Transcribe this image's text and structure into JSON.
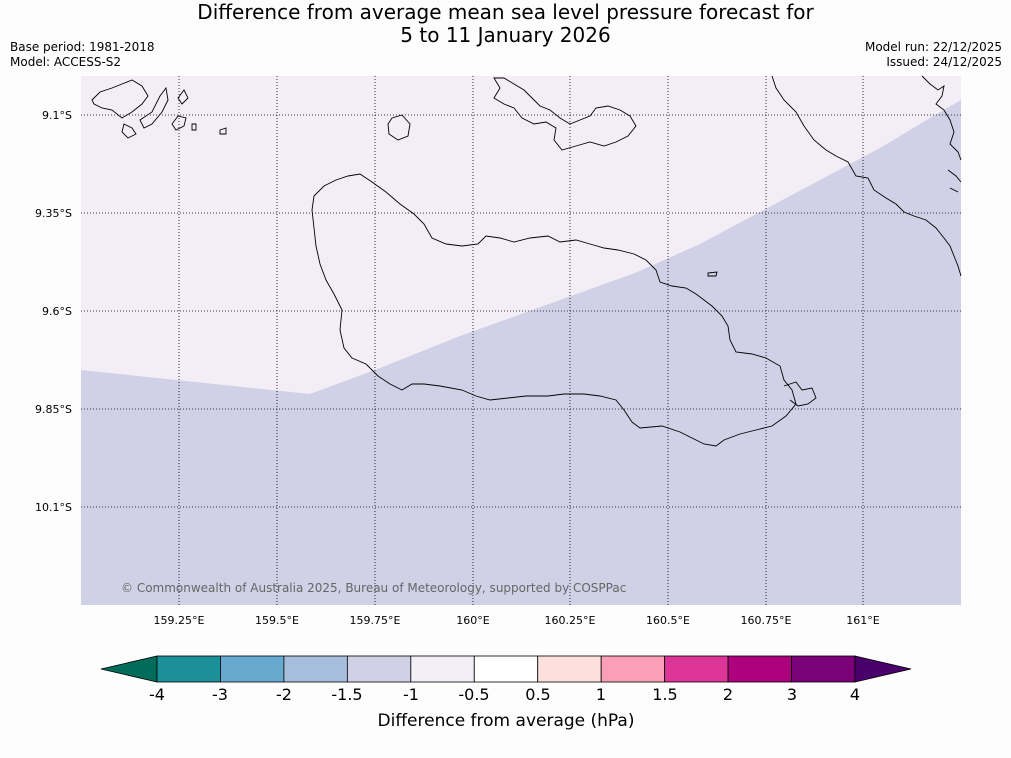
{
  "header": {
    "title_line1": "Difference from average mean sea level pressure forecast for",
    "title_line2": "5 to 11 January 2026",
    "base_period": "Base period: 1981-2018",
    "model": "Model: ACCESS-S2",
    "model_run": "Model run: 22/12/2025",
    "issued": "Issued: 24/12/2025"
  },
  "map": {
    "lat_labels": [
      "9.1°S",
      "9.35°S",
      "9.6°S",
      "9.85°S",
      "10.1°S"
    ],
    "lon_labels": [
      "159.25°E",
      "159.5°E",
      "159.75°E",
      "160°E",
      "160.25°E",
      "160.5°E",
      "160.75°E",
      "161°E"
    ],
    "copyright": "© Commonwealth of Australia 2025, Bureau of Meteorology, supported by COSPPac",
    "fill_colors": {
      "minus_1_to_minus_0_5": "#f3edf5",
      "minus_1_5_to_minus_1": "#d0d1e6"
    }
  },
  "colorbar": {
    "title": "Difference from average (hPa)",
    "tick_labels": [
      "-4",
      "-3",
      "-2",
      "-1.5",
      "-1",
      "-0.5",
      "0.5",
      "1",
      "1.5",
      "2",
      "3",
      "4"
    ],
    "colors": {
      "below_min": "#016c59",
      "bins": [
        "#1c9099",
        "#67a9cf",
        "#a6bddb",
        "#d0d1e6",
        "#f3edf5",
        "#ffffff",
        "#fde0dd",
        "#fa9fb5",
        "#dd3497",
        "#ae017e",
        "#7a0177"
      ],
      "above_max": "#49006a"
    }
  }
}
